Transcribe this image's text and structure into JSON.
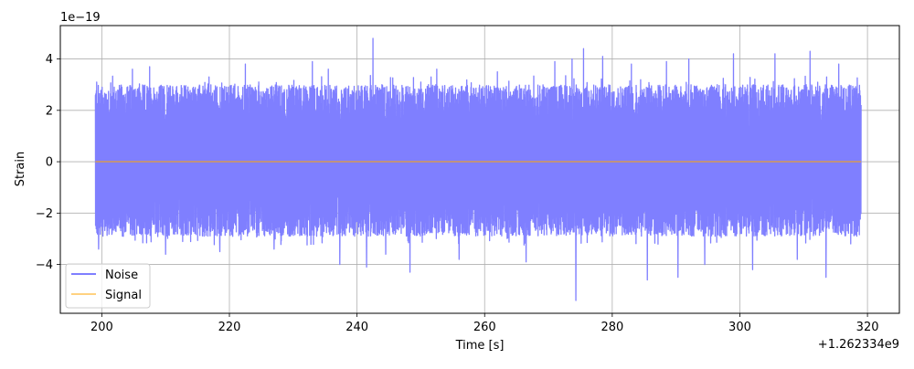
{
  "chart_data": {
    "type": "line",
    "title": "",
    "xlabel": "Time [s]",
    "ylabel": "Strain",
    "x_offset_label": "+1.262334e9",
    "y_exponent_label": "1e−19",
    "xlim": [
      193.5,
      325
    ],
    "ylim": [
      -5.9,
      5.3
    ],
    "xticks": [
      200,
      220,
      240,
      260,
      280,
      300,
      320
    ],
    "xtick_labels": [
      "200",
      "220",
      "240",
      "260",
      "280",
      "300",
      "320"
    ],
    "yticks": [
      -4,
      -2,
      0,
      2,
      4
    ],
    "ytick_labels": [
      "−4",
      "−2",
      "0",
      "2",
      "4"
    ],
    "grid": true,
    "legend_position": "lower-left",
    "series": [
      {
        "name": "Noise",
        "color": "#7f7fff",
        "x_start": 199,
        "x_end": 319,
        "typical_range": [
          -2.9,
          3.0
        ],
        "peak_max": 4.8,
        "peak_min": -5.4,
        "spikes": [
          {
            "x": 199.2,
            "y": 3.1
          },
          {
            "x": 199.5,
            "y": -3.4
          },
          {
            "x": 204.8,
            "y": 3.6
          },
          {
            "x": 207.5,
            "y": 3.7
          },
          {
            "x": 210.0,
            "y": -3.6
          },
          {
            "x": 216.8,
            "y": 3.3
          },
          {
            "x": 218.5,
            "y": -3.5
          },
          {
            "x": 222.5,
            "y": 3.8
          },
          {
            "x": 227.0,
            "y": -3.4
          },
          {
            "x": 233.0,
            "y": 3.9
          },
          {
            "x": 235.5,
            "y": 3.6
          },
          {
            "x": 237.3,
            "y": -4.0
          },
          {
            "x": 241.5,
            "y": -4.1
          },
          {
            "x": 242.5,
            "y": 4.8
          },
          {
            "x": 244.5,
            "y": -3.6
          },
          {
            "x": 248.3,
            "y": -4.3
          },
          {
            "x": 252.5,
            "y": 3.6
          },
          {
            "x": 256.0,
            "y": -3.8
          },
          {
            "x": 262.0,
            "y": 3.5
          },
          {
            "x": 266.5,
            "y": -3.9
          },
          {
            "x": 271.0,
            "y": 3.9
          },
          {
            "x": 273.7,
            "y": 4.0
          },
          {
            "x": 274.3,
            "y": -5.4
          },
          {
            "x": 275.5,
            "y": 4.4
          },
          {
            "x": 278.5,
            "y": 4.1
          },
          {
            "x": 283.0,
            "y": 3.8
          },
          {
            "x": 285.5,
            "y": -4.6
          },
          {
            "x": 288.5,
            "y": 3.9
          },
          {
            "x": 290.3,
            "y": -4.5
          },
          {
            "x": 292.0,
            "y": 4.0
          },
          {
            "x": 294.5,
            "y": -4.0
          },
          {
            "x": 299.0,
            "y": 4.2
          },
          {
            "x": 302.0,
            "y": -4.2
          },
          {
            "x": 305.5,
            "y": 4.2
          },
          {
            "x": 309.0,
            "y": -3.8
          },
          {
            "x": 311.0,
            "y": 4.3
          },
          {
            "x": 313.5,
            "y": -4.5
          },
          {
            "x": 315.5,
            "y": 3.8
          },
          {
            "x": 318.7,
            "y": 1.5
          }
        ]
      },
      {
        "name": "Signal",
        "color": "#ffa500",
        "x": [
          199,
          319
        ],
        "y": [
          0,
          0
        ]
      }
    ]
  }
}
